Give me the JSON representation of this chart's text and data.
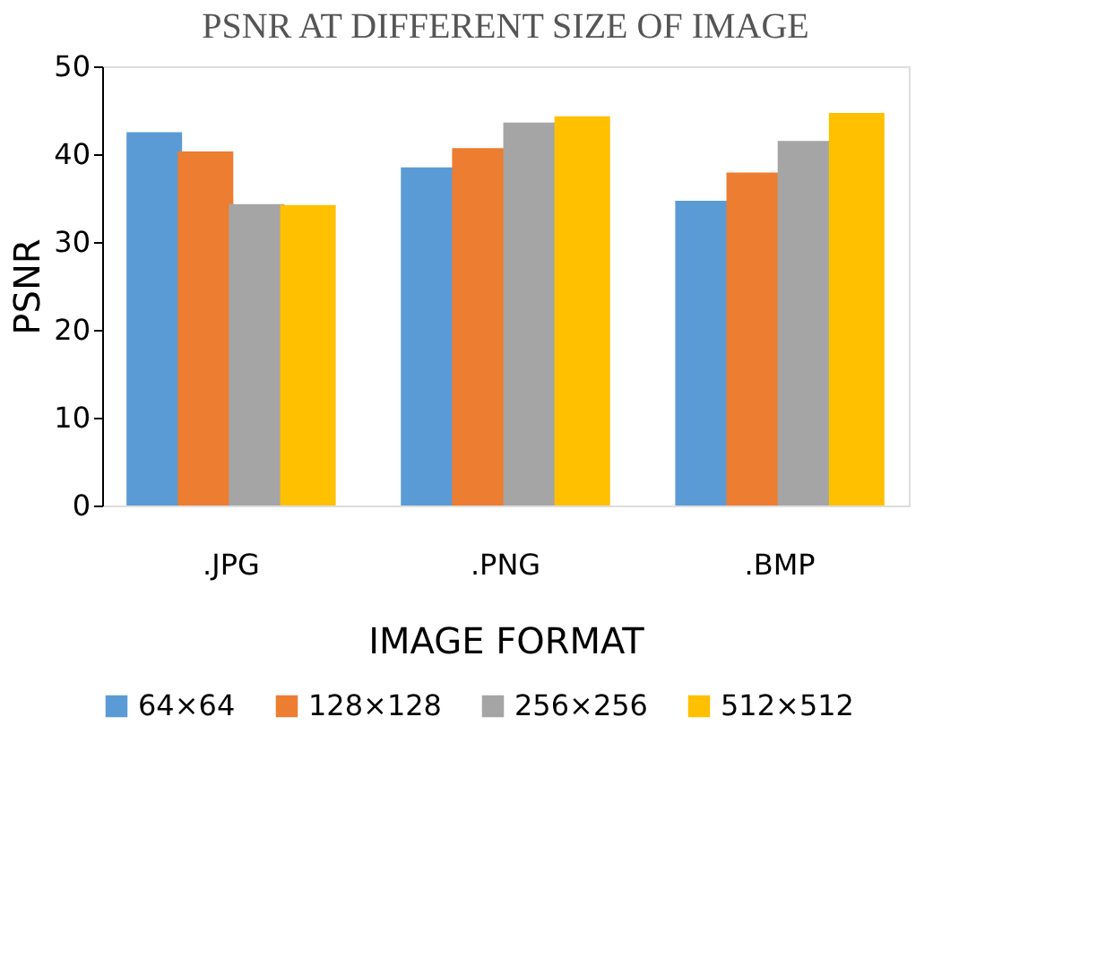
{
  "chart_data": {
    "type": "bar",
    "title": "PSNR AT DIFFERENT SIZE OF IMAGE",
    "xlabel": "IMAGE FORMAT",
    "ylabel": "PSNR",
    "categories": [
      ".JPG",
      ".PNG",
      ".BMP"
    ],
    "series": [
      {
        "name": "64×64",
        "color": "#5b9bd5",
        "values": [
          42.5,
          38.5,
          34.7
        ]
      },
      {
        "name": "128×128",
        "color": "#ed7d31",
        "values": [
          40.3,
          40.7,
          37.9
        ]
      },
      {
        "name": "256×256",
        "color": "#a5a5a5",
        "values": [
          34.3,
          43.6,
          41.5
        ]
      },
      {
        "name": "512×512",
        "color": "#ffc000",
        "values": [
          34.2,
          44.3,
          44.7
        ]
      }
    ],
    "ylim": [
      0,
      50
    ],
    "yticks": [
      0,
      10,
      20,
      30,
      40,
      50
    ],
    "grid": false,
    "legend": "bottom"
  }
}
